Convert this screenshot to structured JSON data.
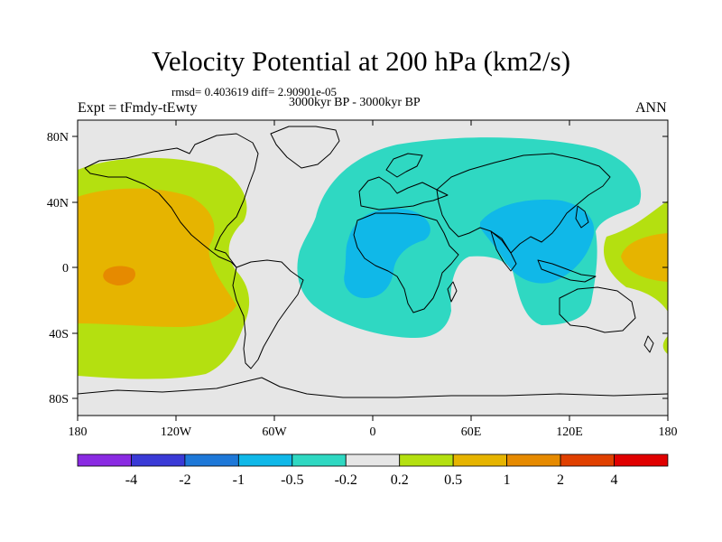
{
  "title": "Velocity Potential at 200 hPa (km2/s)",
  "stats": "rmsd= 0.403619 diff= 2.90901e-05",
  "subtitle": "3000kyr BP - 3000kyr BP",
  "experiment": "Expt = tFmdy-tEwty",
  "season": "ANN",
  "axes": {
    "lat_labels": [
      "80N",
      "40N",
      "0",
      "40S",
      "80S"
    ],
    "lon_labels": [
      "180",
      "120W",
      "60W",
      "0",
      "60E",
      "120E",
      "180"
    ]
  },
  "colorbar": {
    "labels": [
      "-4",
      "-2",
      "-1",
      "-0.5",
      "-0.2",
      "0.2",
      "0.5",
      "1",
      "2",
      "4"
    ],
    "colors": [
      "#8a2be2",
      "#3a3ad6",
      "#1e78d8",
      "#10b8e8",
      "#2fd8c2",
      "#e6e6e6",
      "#b4e010",
      "#e6b400",
      "#e68a00",
      "#e04000",
      "#e00000"
    ]
  },
  "colors": {
    "background": "#e6e6e6",
    "coast": "#000000"
  }
}
